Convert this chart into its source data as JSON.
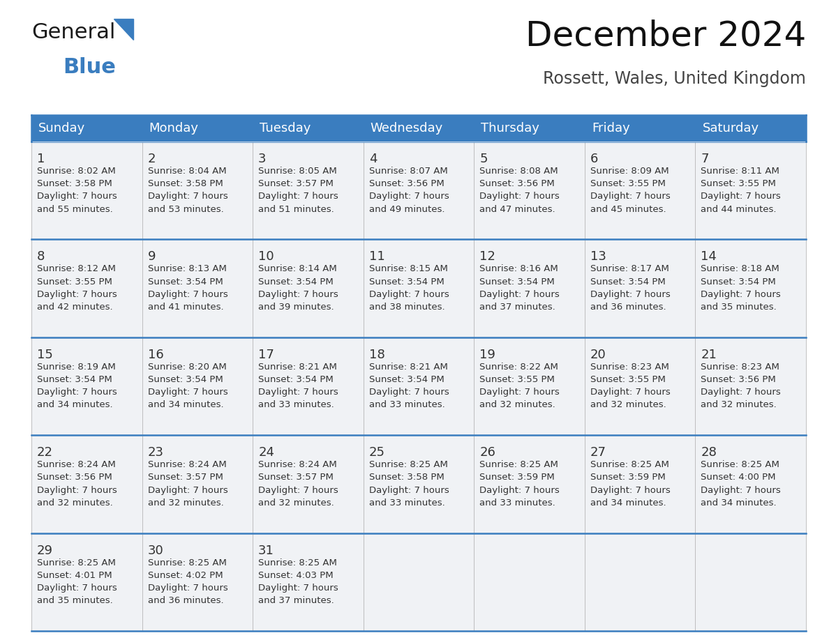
{
  "title": "December 2024",
  "subtitle": "Rossett, Wales, United Kingdom",
  "header_bg": "#3a7dbf",
  "header_text_color": "#ffffff",
  "cell_bg": "#f0f2f5",
  "border_color": "#3a7dbf",
  "text_color": "#333333",
  "day_number_color": "#333333",
  "day_headers": [
    "Sunday",
    "Monday",
    "Tuesday",
    "Wednesday",
    "Thursday",
    "Friday",
    "Saturday"
  ],
  "weeks": [
    [
      {
        "day": "1",
        "sunrise": "8:02 AM",
        "sunset": "3:58 PM",
        "daylight_l1": "Daylight: 7 hours",
        "daylight_l2": "and 55 minutes."
      },
      {
        "day": "2",
        "sunrise": "8:04 AM",
        "sunset": "3:58 PM",
        "daylight_l1": "Daylight: 7 hours",
        "daylight_l2": "and 53 minutes."
      },
      {
        "day": "3",
        "sunrise": "8:05 AM",
        "sunset": "3:57 PM",
        "daylight_l1": "Daylight: 7 hours",
        "daylight_l2": "and 51 minutes."
      },
      {
        "day": "4",
        "sunrise": "8:07 AM",
        "sunset": "3:56 PM",
        "daylight_l1": "Daylight: 7 hours",
        "daylight_l2": "and 49 minutes."
      },
      {
        "day": "5",
        "sunrise": "8:08 AM",
        "sunset": "3:56 PM",
        "daylight_l1": "Daylight: 7 hours",
        "daylight_l2": "and 47 minutes."
      },
      {
        "day": "6",
        "sunrise": "8:09 AM",
        "sunset": "3:55 PM",
        "daylight_l1": "Daylight: 7 hours",
        "daylight_l2": "and 45 minutes."
      },
      {
        "day": "7",
        "sunrise": "8:11 AM",
        "sunset": "3:55 PM",
        "daylight_l1": "Daylight: 7 hours",
        "daylight_l2": "and 44 minutes."
      }
    ],
    [
      {
        "day": "8",
        "sunrise": "8:12 AM",
        "sunset": "3:55 PM",
        "daylight_l1": "Daylight: 7 hours",
        "daylight_l2": "and 42 minutes."
      },
      {
        "day": "9",
        "sunrise": "8:13 AM",
        "sunset": "3:54 PM",
        "daylight_l1": "Daylight: 7 hours",
        "daylight_l2": "and 41 minutes."
      },
      {
        "day": "10",
        "sunrise": "8:14 AM",
        "sunset": "3:54 PM",
        "daylight_l1": "Daylight: 7 hours",
        "daylight_l2": "and 39 minutes."
      },
      {
        "day": "11",
        "sunrise": "8:15 AM",
        "sunset": "3:54 PM",
        "daylight_l1": "Daylight: 7 hours",
        "daylight_l2": "and 38 minutes."
      },
      {
        "day": "12",
        "sunrise": "8:16 AM",
        "sunset": "3:54 PM",
        "daylight_l1": "Daylight: 7 hours",
        "daylight_l2": "and 37 minutes."
      },
      {
        "day": "13",
        "sunrise": "8:17 AM",
        "sunset": "3:54 PM",
        "daylight_l1": "Daylight: 7 hours",
        "daylight_l2": "and 36 minutes."
      },
      {
        "day": "14",
        "sunrise": "8:18 AM",
        "sunset": "3:54 PM",
        "daylight_l1": "Daylight: 7 hours",
        "daylight_l2": "and 35 minutes."
      }
    ],
    [
      {
        "day": "15",
        "sunrise": "8:19 AM",
        "sunset": "3:54 PM",
        "daylight_l1": "Daylight: 7 hours",
        "daylight_l2": "and 34 minutes."
      },
      {
        "day": "16",
        "sunrise": "8:20 AM",
        "sunset": "3:54 PM",
        "daylight_l1": "Daylight: 7 hours",
        "daylight_l2": "and 34 minutes."
      },
      {
        "day": "17",
        "sunrise": "8:21 AM",
        "sunset": "3:54 PM",
        "daylight_l1": "Daylight: 7 hours",
        "daylight_l2": "and 33 minutes."
      },
      {
        "day": "18",
        "sunrise": "8:21 AM",
        "sunset": "3:54 PM",
        "daylight_l1": "Daylight: 7 hours",
        "daylight_l2": "and 33 minutes."
      },
      {
        "day": "19",
        "sunrise": "8:22 AM",
        "sunset": "3:55 PM",
        "daylight_l1": "Daylight: 7 hours",
        "daylight_l2": "and 32 minutes."
      },
      {
        "day": "20",
        "sunrise": "8:23 AM",
        "sunset": "3:55 PM",
        "daylight_l1": "Daylight: 7 hours",
        "daylight_l2": "and 32 minutes."
      },
      {
        "day": "21",
        "sunrise": "8:23 AM",
        "sunset": "3:56 PM",
        "daylight_l1": "Daylight: 7 hours",
        "daylight_l2": "and 32 minutes."
      }
    ],
    [
      {
        "day": "22",
        "sunrise": "8:24 AM",
        "sunset": "3:56 PM",
        "daylight_l1": "Daylight: 7 hours",
        "daylight_l2": "and 32 minutes."
      },
      {
        "day": "23",
        "sunrise": "8:24 AM",
        "sunset": "3:57 PM",
        "daylight_l1": "Daylight: 7 hours",
        "daylight_l2": "and 32 minutes."
      },
      {
        "day": "24",
        "sunrise": "8:24 AM",
        "sunset": "3:57 PM",
        "daylight_l1": "Daylight: 7 hours",
        "daylight_l2": "and 32 minutes."
      },
      {
        "day": "25",
        "sunrise": "8:25 AM",
        "sunset": "3:58 PM",
        "daylight_l1": "Daylight: 7 hours",
        "daylight_l2": "and 33 minutes."
      },
      {
        "day": "26",
        "sunrise": "8:25 AM",
        "sunset": "3:59 PM",
        "daylight_l1": "Daylight: 7 hours",
        "daylight_l2": "and 33 minutes."
      },
      {
        "day": "27",
        "sunrise": "8:25 AM",
        "sunset": "3:59 PM",
        "daylight_l1": "Daylight: 7 hours",
        "daylight_l2": "and 34 minutes."
      },
      {
        "day": "28",
        "sunrise": "8:25 AM",
        "sunset": "4:00 PM",
        "daylight_l1": "Daylight: 7 hours",
        "daylight_l2": "and 34 minutes."
      }
    ],
    [
      {
        "day": "29",
        "sunrise": "8:25 AM",
        "sunset": "4:01 PM",
        "daylight_l1": "Daylight: 7 hours",
        "daylight_l2": "and 35 minutes."
      },
      {
        "day": "30",
        "sunrise": "8:25 AM",
        "sunset": "4:02 PM",
        "daylight_l1": "Daylight: 7 hours",
        "daylight_l2": "and 36 minutes."
      },
      {
        "day": "31",
        "sunrise": "8:25 AM",
        "sunset": "4:03 PM",
        "daylight_l1": "Daylight: 7 hours",
        "daylight_l2": "and 37 minutes."
      },
      null,
      null,
      null,
      null
    ]
  ],
  "logo_text_general": "General",
  "logo_text_blue": "Blue",
  "logo_color_general": "#1a1a1a",
  "logo_color_blue": "#3a7dbf",
  "logo_triangle_color": "#3a7dbf",
  "title_fontsize": 36,
  "subtitle_fontsize": 17,
  "header_fontsize": 13,
  "day_num_fontsize": 13,
  "cell_fontsize": 9.5
}
